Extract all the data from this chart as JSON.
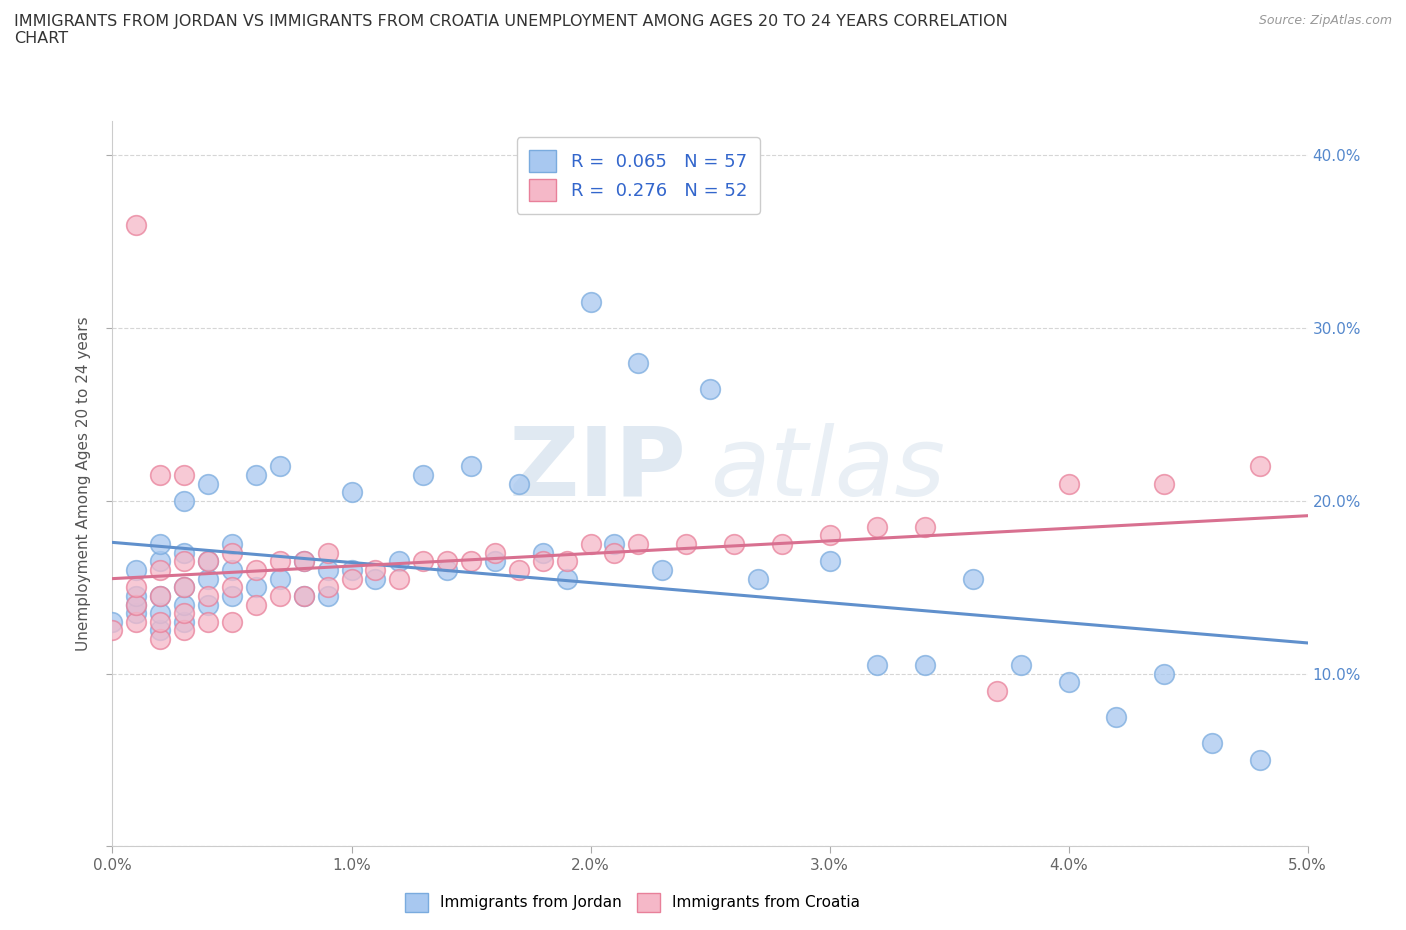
{
  "title": "IMMIGRANTS FROM JORDAN VS IMMIGRANTS FROM CROATIA UNEMPLOYMENT AMONG AGES 20 TO 24 YEARS CORRELATION\nCHART",
  "source": "Source: ZipAtlas.com",
  "ylabel": "Unemployment Among Ages 20 to 24 years",
  "jordan_color": "#a8c8f0",
  "croatia_color": "#f5b8c8",
  "jordan_edge_color": "#7aabde",
  "croatia_edge_color": "#e8809a",
  "jordan_line_color": "#6090cc",
  "croatia_line_color": "#d87090",
  "jordan_R": 0.065,
  "jordan_N": 57,
  "croatia_R": 0.276,
  "croatia_N": 52,
  "xlim": [
    0.0,
    0.05
  ],
  "ylim": [
    0.0,
    0.42
  ],
  "xticks": [
    0.0,
    0.01,
    0.02,
    0.03,
    0.04,
    0.05
  ],
  "yticks_right": [
    0.1,
    0.2,
    0.3,
    0.4
  ],
  "xticklabels": [
    "0.0%",
    "1.0%",
    "2.0%",
    "3.0%",
    "4.0%",
    "5.0%"
  ],
  "yticklabels_right": [
    "10.0%",
    "20.0%",
    "30.0%",
    "40.0%"
  ],
  "background_color": "#ffffff",
  "watermark_zip": "ZIP",
  "watermark_atlas": "atlas",
  "jordan_x": [
    0.0,
    0.001,
    0.001,
    0.001,
    0.001,
    0.002,
    0.002,
    0.002,
    0.002,
    0.002,
    0.003,
    0.003,
    0.003,
    0.003,
    0.003,
    0.004,
    0.004,
    0.004,
    0.004,
    0.005,
    0.005,
    0.005,
    0.006,
    0.006,
    0.007,
    0.007,
    0.008,
    0.008,
    0.009,
    0.009,
    0.01,
    0.01,
    0.011,
    0.012,
    0.013,
    0.014,
    0.015,
    0.016,
    0.017,
    0.018,
    0.019,
    0.02,
    0.021,
    0.022,
    0.023,
    0.025,
    0.027,
    0.03,
    0.032,
    0.034,
    0.036,
    0.038,
    0.04,
    0.042,
    0.044,
    0.046,
    0.048
  ],
  "jordan_y": [
    0.13,
    0.135,
    0.14,
    0.145,
    0.16,
    0.125,
    0.135,
    0.145,
    0.165,
    0.175,
    0.13,
    0.14,
    0.15,
    0.17,
    0.2,
    0.14,
    0.155,
    0.165,
    0.21,
    0.145,
    0.16,
    0.175,
    0.15,
    0.215,
    0.155,
    0.22,
    0.145,
    0.165,
    0.145,
    0.16,
    0.16,
    0.205,
    0.155,
    0.165,
    0.215,
    0.16,
    0.22,
    0.165,
    0.21,
    0.17,
    0.155,
    0.315,
    0.175,
    0.28,
    0.16,
    0.265,
    0.155,
    0.165,
    0.105,
    0.105,
    0.155,
    0.105,
    0.095,
    0.075,
    0.1,
    0.06,
    0.05
  ],
  "croatia_x": [
    0.0,
    0.001,
    0.001,
    0.001,
    0.001,
    0.002,
    0.002,
    0.002,
    0.002,
    0.002,
    0.003,
    0.003,
    0.003,
    0.003,
    0.003,
    0.004,
    0.004,
    0.004,
    0.005,
    0.005,
    0.005,
    0.006,
    0.006,
    0.007,
    0.007,
    0.008,
    0.008,
    0.009,
    0.009,
    0.01,
    0.011,
    0.012,
    0.013,
    0.014,
    0.015,
    0.016,
    0.017,
    0.018,
    0.019,
    0.02,
    0.021,
    0.022,
    0.024,
    0.026,
    0.028,
    0.03,
    0.032,
    0.034,
    0.037,
    0.04,
    0.044,
    0.048
  ],
  "croatia_y": [
    0.125,
    0.13,
    0.14,
    0.15,
    0.36,
    0.12,
    0.13,
    0.145,
    0.16,
    0.215,
    0.125,
    0.135,
    0.15,
    0.165,
    0.215,
    0.13,
    0.145,
    0.165,
    0.13,
    0.15,
    0.17,
    0.14,
    0.16,
    0.145,
    0.165,
    0.145,
    0.165,
    0.15,
    0.17,
    0.155,
    0.16,
    0.155,
    0.165,
    0.165,
    0.165,
    0.17,
    0.16,
    0.165,
    0.165,
    0.175,
    0.17,
    0.175,
    0.175,
    0.175,
    0.175,
    0.18,
    0.185,
    0.185,
    0.09,
    0.21,
    0.21,
    0.22
  ]
}
